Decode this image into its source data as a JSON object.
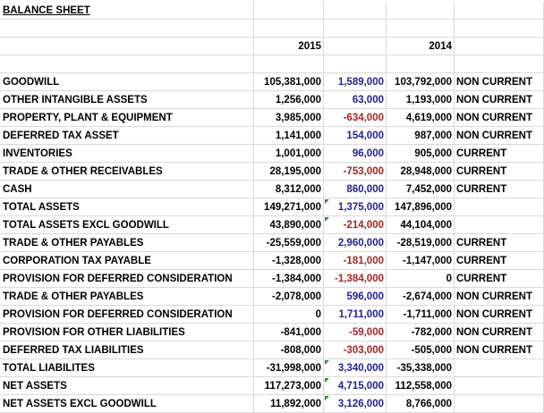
{
  "sheet": {
    "title": "BALANCE SHEET",
    "years": {
      "current": "2015",
      "prior": "2014"
    },
    "rows": [
      {
        "label": "GOODWILL",
        "y2015": "105,381,000",
        "change": "1,589,000",
        "change_sign": "pos",
        "y2014": "103,792,000",
        "class": "NON CURRENT"
      },
      {
        "label": "OTHER INTANGIBLE ASSETS",
        "y2015": "1,256,000",
        "change": "63,000",
        "change_sign": "pos",
        "y2014": "1,193,000",
        "class": "NON CURRENT"
      },
      {
        "label": "PROPERTY, PLANT & EQUIPMENT",
        "y2015": "3,985,000",
        "change": "-634,000",
        "change_sign": "neg",
        "y2014": "4,619,000",
        "class": "NON CURRENT"
      },
      {
        "label": "DEFERRED TAX ASSET",
        "y2015": "1,141,000",
        "change": "154,000",
        "change_sign": "pos",
        "y2014": "987,000",
        "class": "NON CURRENT"
      },
      {
        "label": "INVENTORIES",
        "y2015": "1,001,000",
        "change": "96,000",
        "change_sign": "pos",
        "y2014": "905,000",
        "class": "CURRENT"
      },
      {
        "label": "TRADE & OTHER RECEIVABLES",
        "y2015": "28,195,000",
        "change": "-753,000",
        "change_sign": "neg",
        "y2014": "28,948,000",
        "class": "CURRENT"
      },
      {
        "label": "CASH",
        "y2015": "8,312,000",
        "change": "860,000",
        "change_sign": "pos",
        "y2014": "7,452,000",
        "class": "CURRENT"
      },
      {
        "label": "TOTAL ASSETS",
        "y2015": "149,271,000",
        "change": "1,375,000",
        "change_sign": "pos",
        "y2014": "147,896,000",
        "class": "",
        "marker": true
      },
      {
        "label": "TOTAL ASSETS EXCL GOODWILL",
        "y2015": "43,890,000",
        "change": "-214,000",
        "change_sign": "neg",
        "y2014": "44,104,000",
        "class": "",
        "marker": true
      },
      {
        "label": "TRADE & OTHER PAYABLES",
        "y2015": "-25,559,000",
        "change": "2,960,000",
        "change_sign": "pos",
        "y2014": "-28,519,000",
        "class": "CURRENT"
      },
      {
        "label": "CORPORATION TAX PAYABLE",
        "y2015": "-1,328,000",
        "change": "-181,000",
        "change_sign": "neg",
        "y2014": "-1,147,000",
        "class": "CURRENT"
      },
      {
        "label": "PROVISION FOR DEFERRED CONSIDERATION",
        "y2015": "-1,384,000",
        "change": "-1,384,000",
        "change_sign": "neg",
        "y2014": "0",
        "class": "CURRENT"
      },
      {
        "label": "TRADE & OTHER PAYABLES",
        "y2015": "-2,078,000",
        "change": "596,000",
        "change_sign": "pos",
        "y2014": "-2,674,000",
        "class": "NON CURRENT"
      },
      {
        "label": "PROVISION FOR DEFERRED CONSIDERATION",
        "y2015": "0",
        "change": "1,711,000",
        "change_sign": "pos",
        "y2014": "-1,711,000",
        "class": "NON CURRENT"
      },
      {
        "label": "PROVISION FOR OTHER LIABILITIES",
        "y2015": "-841,000",
        "change": "-59,000",
        "change_sign": "neg",
        "y2014": "-782,000",
        "class": "NON CURRENT"
      },
      {
        "label": "DEFERRED TAX LIABILITIES",
        "y2015": "-808,000",
        "change": "-303,000",
        "change_sign": "neg",
        "y2014": "-505,000",
        "class": "NON CURRENT"
      },
      {
        "label": "TOTAL LIABILITES",
        "y2015": "-31,998,000",
        "change": "3,340,000",
        "change_sign": "pos",
        "y2014": "-35,338,000",
        "class": "",
        "marker": true
      },
      {
        "label": "NET ASSETS",
        "y2015": "117,273,000",
        "change": "4,715,000",
        "change_sign": "pos",
        "y2014": "112,558,000",
        "class": "",
        "marker": true
      },
      {
        "label": "NET ASSETS EXCL GOODWILL",
        "y2015": "11,892,000",
        "change": "3,126,000",
        "change_sign": "pos",
        "y2014": "8,766,000",
        "class": "",
        "marker": true
      }
    ]
  },
  "colors": {
    "positive_change": "#1f1f8f",
    "negative_change": "#a32525",
    "formula_marker": "#2e8b2e",
    "gridline": "#d9d9d9"
  }
}
